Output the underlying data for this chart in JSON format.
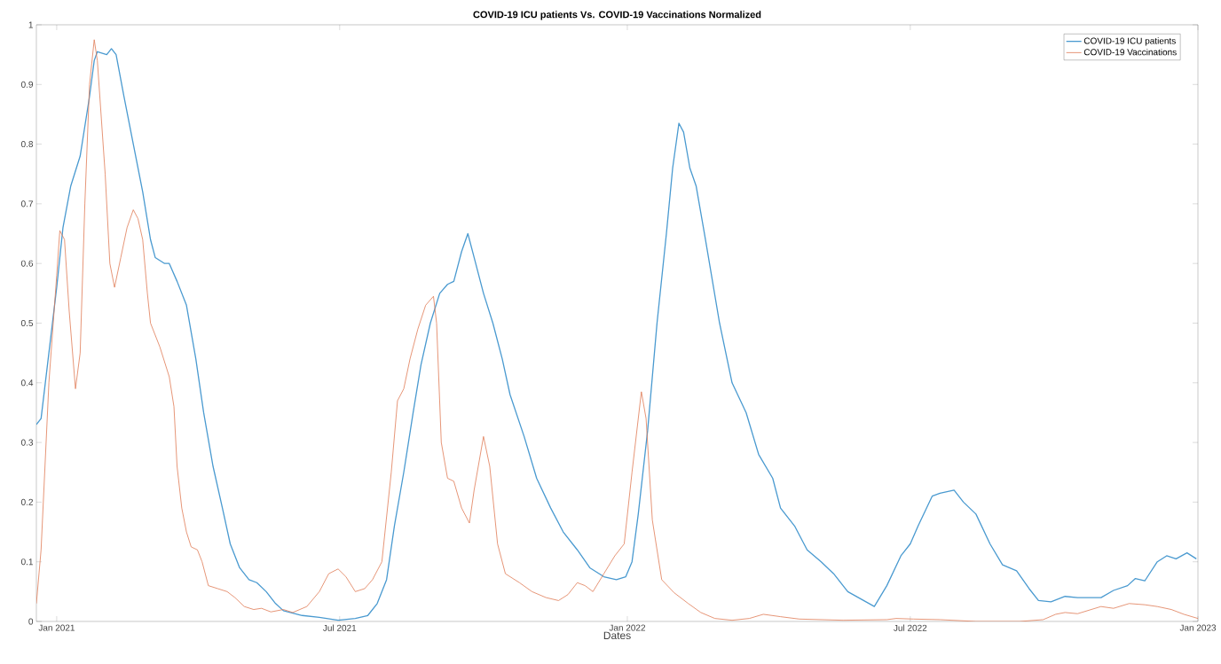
{
  "chart_data": {
    "type": "line",
    "title": "COVID-19 ICU patients Vs. COVID-19 Vaccinations Normalized",
    "xlabel": "Dates",
    "xlim": [
      "2020-12-19",
      "2023-01-01"
    ],
    "xticks": [
      {
        "value": "2021-01-01",
        "label": "Jan 2021"
      },
      {
        "value": "2021-07-01",
        "label": "Jul 2021"
      },
      {
        "value": "2022-01-01",
        "label": "Jan 2022"
      },
      {
        "value": "2022-07-01",
        "label": "Jul 2022"
      },
      {
        "value": "2023-01-01",
        "label": "Jan 2023"
      }
    ],
    "ylim": [
      0,
      1
    ],
    "yticks": [
      0,
      0.1,
      0.2,
      0.3,
      0.4,
      0.5,
      0.6,
      0.7,
      0.8,
      0.9,
      1
    ],
    "legend": "top right",
    "grid": false,
    "series": [
      {
        "name": "COVID-19 ICU patients",
        "color": "#4a9ad0",
        "x": [
          "2020-12-19",
          "2020-12-22",
          "2020-12-27",
          "2021-01-01",
          "2021-01-05",
          "2021-01-10",
          "2021-01-16",
          "2021-01-22",
          "2021-01-25",
          "2021-01-27",
          "2021-02-02",
          "2021-02-05",
          "2021-02-08",
          "2021-02-13",
          "2021-02-19",
          "2021-02-25",
          "2021-03-02",
          "2021-03-05",
          "2021-03-11",
          "2021-03-14",
          "2021-03-19",
          "2021-03-25",
          "2021-03-31",
          "2021-04-05",
          "2021-04-11",
          "2021-04-17",
          "2021-04-22",
          "2021-04-28",
          "2021-05-04",
          "2021-05-09",
          "2021-05-15",
          "2021-05-21",
          "2021-05-26",
          "2021-06-07",
          "2021-06-18",
          "2021-06-30",
          "2021-07-11",
          "2021-07-19",
          "2021-07-25",
          "2021-07-31",
          "2021-08-05",
          "2021-08-11",
          "2021-08-17",
          "2021-08-22",
          "2021-08-28",
          "2021-09-03",
          "2021-09-08",
          "2021-09-12",
          "2021-09-17",
          "2021-09-21",
          "2021-09-25",
          "2021-10-01",
          "2021-10-07",
          "2021-10-13",
          "2021-10-18",
          "2021-10-27",
          "2021-11-04",
          "2021-11-13",
          "2021-11-21",
          "2021-11-30",
          "2021-12-08",
          "2021-12-17",
          "2021-12-25",
          "2021-12-31",
          "2022-01-04",
          "2022-01-08",
          "2022-01-14",
          "2022-01-20",
          "2022-01-26",
          "2022-01-30",
          "2022-02-03",
          "2022-02-06",
          "2022-02-10",
          "2022-02-14",
          "2022-02-20",
          "2022-03-01",
          "2022-03-09",
          "2022-03-18",
          "2022-03-26",
          "2022-04-04",
          "2022-04-09",
          "2022-04-18",
          "2022-04-26",
          "2022-05-05",
          "2022-05-13",
          "2022-05-22",
          "2022-06-08",
          "2022-06-16",
          "2022-06-25",
          "2022-07-01",
          "2022-07-06",
          "2022-07-15",
          "2022-07-20",
          "2022-07-29",
          "2022-08-04",
          "2022-08-12",
          "2022-08-21",
          "2022-08-29",
          "2022-09-07",
          "2022-09-15",
          "2022-09-21",
          "2022-09-29",
          "2022-10-08",
          "2022-10-16",
          "2022-10-31",
          "2022-11-08",
          "2022-11-17",
          "2022-11-22",
          "2022-11-28",
          "2022-12-06",
          "2022-12-12",
          "2022-12-18",
          "2022-12-25",
          "2022-12-31"
        ],
        "values": [
          0.33,
          0.34,
          0.45,
          0.56,
          0.66,
          0.73,
          0.78,
          0.88,
          0.94,
          0.955,
          0.95,
          0.96,
          0.95,
          0.88,
          0.8,
          0.72,
          0.64,
          0.61,
          0.6,
          0.6,
          0.57,
          0.53,
          0.44,
          0.35,
          0.26,
          0.19,
          0.13,
          0.09,
          0.07,
          0.065,
          0.05,
          0.03,
          0.018,
          0.01,
          0.007,
          0.002,
          0.005,
          0.01,
          0.03,
          0.07,
          0.16,
          0.25,
          0.35,
          0.43,
          0.5,
          0.55,
          0.565,
          0.57,
          0.62,
          0.65,
          0.61,
          0.55,
          0.5,
          0.44,
          0.38,
          0.31,
          0.24,
          0.19,
          0.15,
          0.12,
          0.09,
          0.075,
          0.07,
          0.075,
          0.1,
          0.18,
          0.32,
          0.5,
          0.65,
          0.76,
          0.835,
          0.82,
          0.76,
          0.73,
          0.64,
          0.5,
          0.4,
          0.35,
          0.28,
          0.24,
          0.19,
          0.16,
          0.12,
          0.1,
          0.08,
          0.05,
          0.025,
          0.06,
          0.11,
          0.13,
          0.16,
          0.21,
          0.215,
          0.22,
          0.2,
          0.18,
          0.13,
          0.095,
          0.085,
          0.055,
          0.035,
          0.033,
          0.042,
          0.04,
          0.04,
          0.052,
          0.06,
          0.072,
          0.068,
          0.1,
          0.11,
          0.105,
          0.115,
          0.105
        ]
      },
      {
        "name": "COVID-19 Vaccinations",
        "color": "#e07b55",
        "x": [
          "2020-12-19",
          "2020-12-22",
          "2020-12-27",
          "2021-01-01",
          "2021-01-03",
          "2021-01-06",
          "2021-01-09",
          "2021-01-13",
          "2021-01-16",
          "2021-01-19",
          "2021-01-22",
          "2021-01-25",
          "2021-01-27",
          "2021-02-01",
          "2021-02-04",
          "2021-02-07",
          "2021-02-11",
          "2021-02-15",
          "2021-02-19",
          "2021-02-22",
          "2021-02-25",
          "2021-02-28",
          "2021-03-02",
          "2021-03-08",
          "2021-03-14",
          "2021-03-17",
          "2021-03-19",
          "2021-03-22",
          "2021-03-25",
          "2021-03-28",
          "2021-04-01",
          "2021-04-04",
          "2021-04-08",
          "2021-04-14",
          "2021-04-20",
          "2021-04-25",
          "2021-05-01",
          "2021-05-07",
          "2021-05-12",
          "2021-05-18",
          "2021-05-26",
          "2021-06-01",
          "2021-06-10",
          "2021-06-18",
          "2021-06-24",
          "2021-06-30",
          "2021-07-05",
          "2021-07-11",
          "2021-07-17",
          "2021-07-22",
          "2021-07-28",
          "2021-08-03",
          "2021-08-07",
          "2021-08-11",
          "2021-08-15",
          "2021-08-20",
          "2021-08-25",
          "2021-08-30",
          "2021-09-01",
          "2021-09-04",
          "2021-09-08",
          "2021-09-12",
          "2021-09-17",
          "2021-09-22",
          "2021-09-25",
          "2021-10-01",
          "2021-10-05",
          "2021-10-10",
          "2021-10-15",
          "2021-10-24",
          "2021-11-01",
          "2021-11-10",
          "2021-11-18",
          "2021-11-24",
          "2021-11-30",
          "2021-12-05",
          "2021-12-10",
          "2021-12-17",
          "2021-12-24",
          "2021-12-30",
          "2022-01-04",
          "2022-01-10",
          "2022-01-13",
          "2022-01-17",
          "2022-01-23",
          "2022-01-31",
          "2022-02-09",
          "2022-02-17",
          "2022-02-26",
          "2022-03-09",
          "2022-03-20",
          "2022-03-29",
          "2022-04-09",
          "2022-04-21",
          "2022-05-19",
          "2022-06-16",
          "2022-06-22",
          "2022-07-03",
          "2022-07-20",
          "2022-08-12",
          "2022-09-09",
          "2022-09-24",
          "2022-10-02",
          "2022-10-08",
          "2022-10-16",
          "2022-10-31",
          "2022-11-08",
          "2022-11-18",
          "2022-11-28",
          "2022-12-06",
          "2022-12-15",
          "2022-12-23",
          "2023-01-01"
        ],
        "values": [
          0.03,
          0.12,
          0.4,
          0.58,
          0.655,
          0.64,
          0.52,
          0.39,
          0.45,
          0.7,
          0.9,
          0.975,
          0.94,
          0.75,
          0.6,
          0.56,
          0.61,
          0.66,
          0.69,
          0.675,
          0.64,
          0.55,
          0.5,
          0.46,
          0.41,
          0.36,
          0.26,
          0.19,
          0.15,
          0.125,
          0.12,
          0.1,
          0.06,
          0.055,
          0.05,
          0.04,
          0.025,
          0.02,
          0.022,
          0.016,
          0.02,
          0.015,
          0.025,
          0.05,
          0.08,
          0.088,
          0.075,
          0.05,
          0.055,
          0.07,
          0.1,
          0.25,
          0.37,
          0.39,
          0.44,
          0.49,
          0.53,
          0.545,
          0.5,
          0.3,
          0.24,
          0.235,
          0.19,
          0.165,
          0.22,
          0.31,
          0.26,
          0.13,
          0.08,
          0.065,
          0.05,
          0.04,
          0.035,
          0.045,
          0.065,
          0.06,
          0.05,
          0.08,
          0.11,
          0.13,
          0.25,
          0.385,
          0.34,
          0.17,
          0.07,
          0.048,
          0.03,
          0.015,
          0.005,
          0.002,
          0.005,
          0.012,
          0.008,
          0.004,
          0.002,
          0.003,
          0.005,
          0.004,
          0.003,
          0,
          0,
          0.003,
          0.012,
          0.015,
          0.013,
          0.025,
          0.022,
          0.03,
          0.028,
          0.025,
          0.02,
          0.012,
          0.005
        ]
      }
    ]
  }
}
